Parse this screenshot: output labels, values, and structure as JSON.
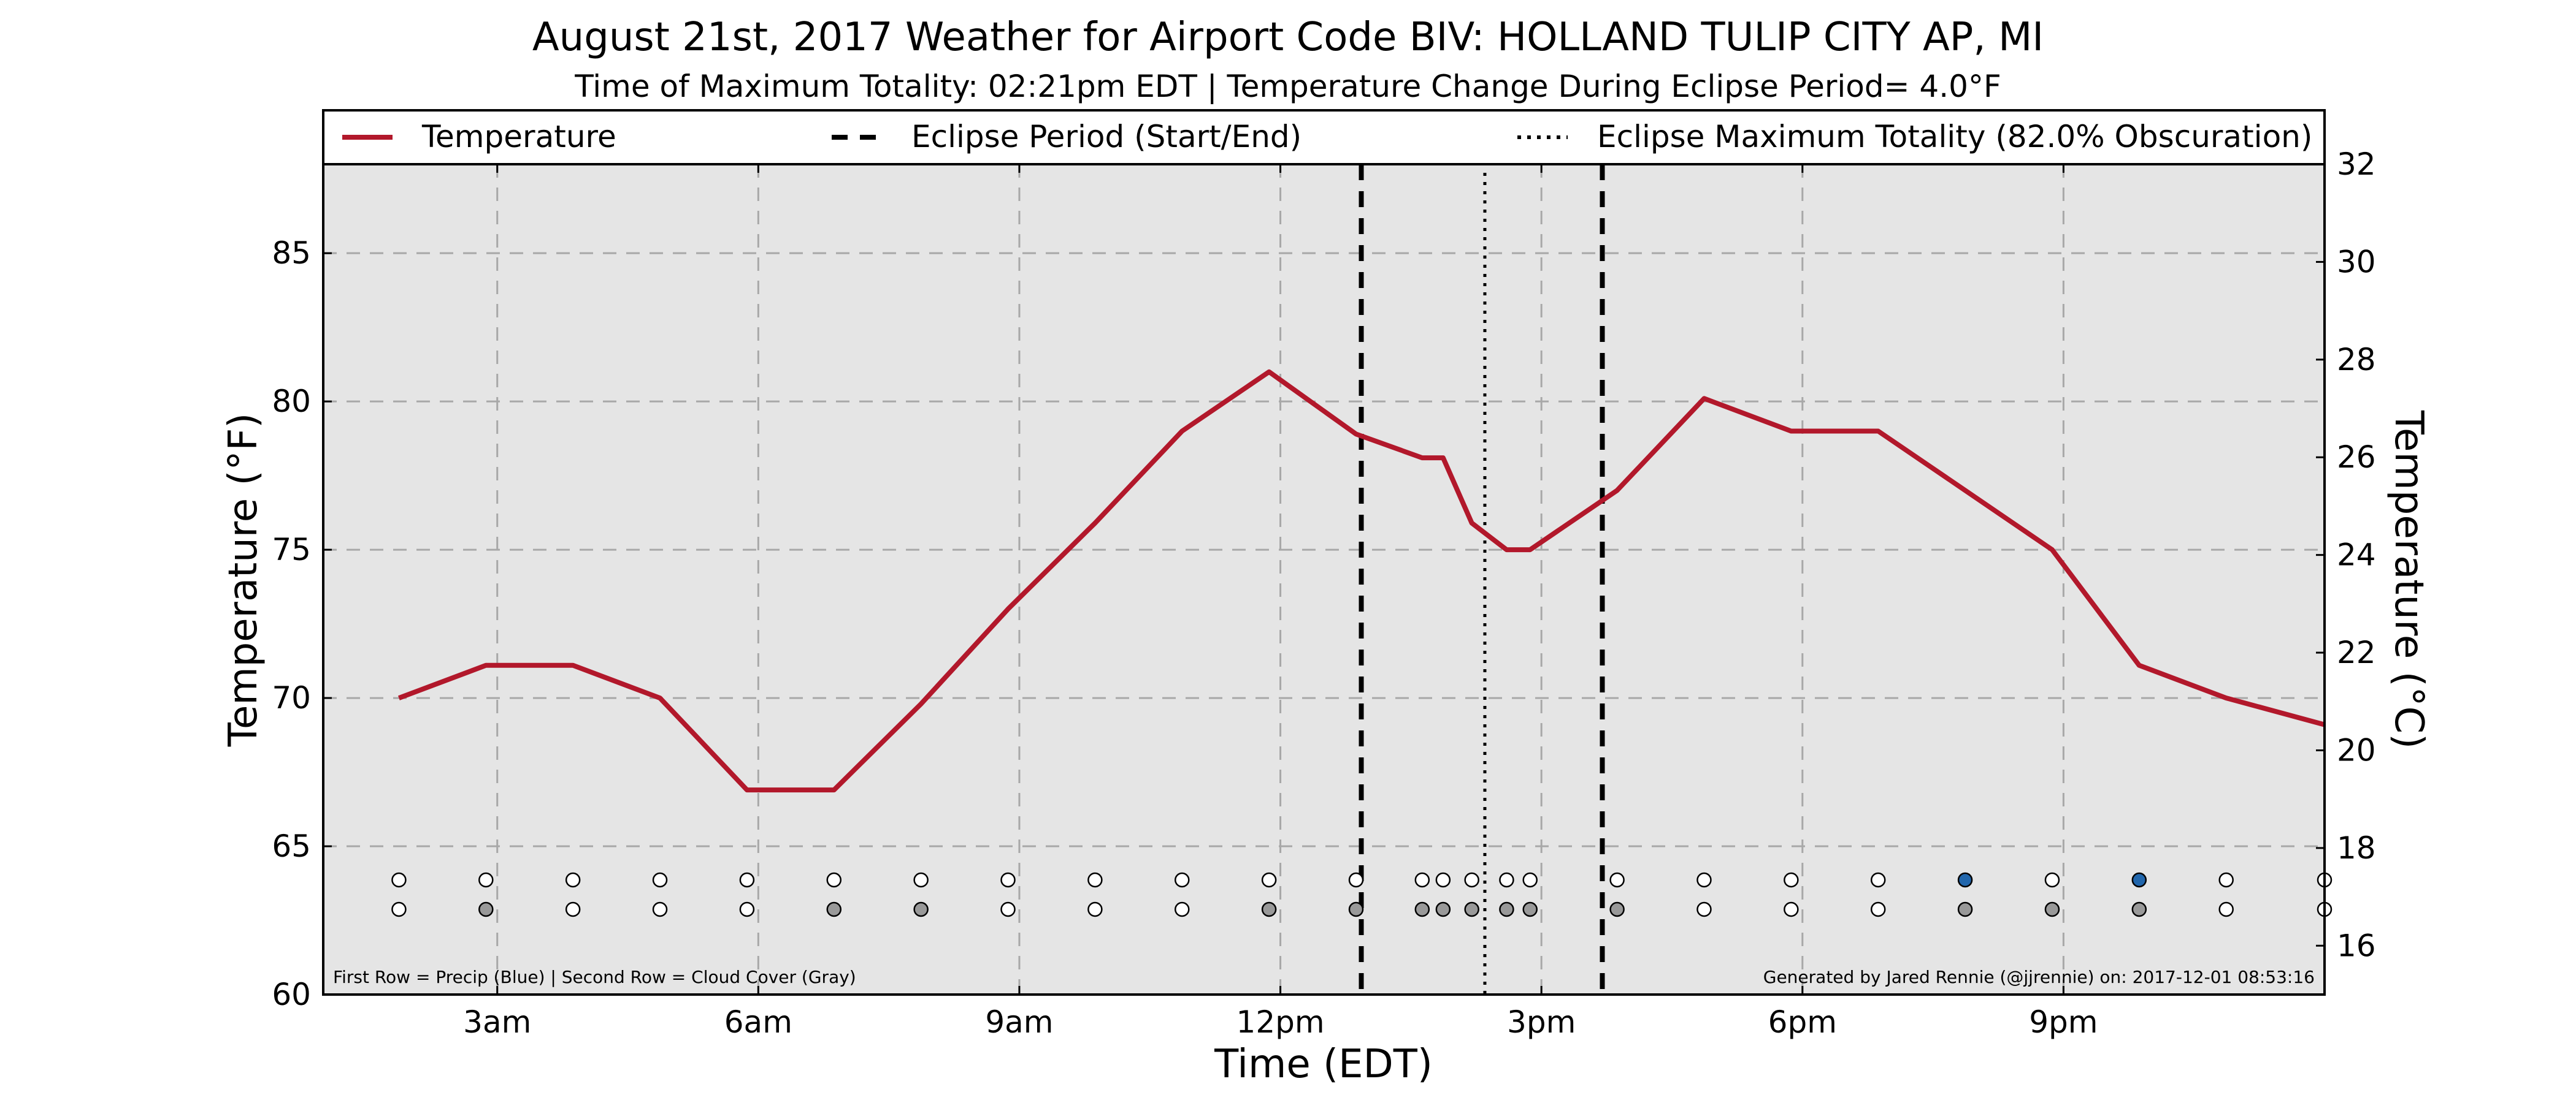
{
  "header": {
    "title": "August 21st, 2017 Weather for Airport Code BIV: HOLLAND TULIP CITY AP, MI",
    "subtitle": "Time of Maximum Totality: 02:21pm EDT | Temperature Change During Eclipse Period= 4.0°F"
  },
  "legend": {
    "temperature": "Temperature",
    "eclipse_period": "Eclipse Period (Start/End)",
    "eclipse_max": "Eclipse Maximum Totality (82.0% Obscuration)",
    "placement": "top"
  },
  "footer": {
    "left": "First Row = Precip (Blue) | Second Row = Cloud Cover (Gray)",
    "right": "Generated by Jared Rennie (@jjrennie) on: 2017-12-01 08:53:16"
  },
  "colors": {
    "plot_background": "#e5e5e5",
    "temperature_line": "#b2182b",
    "precip": "#2166ac",
    "cloud": "#999999",
    "clear": "#ffffff"
  },
  "chart_data": {
    "type": "line",
    "x_unit": "hours after midnight EDT",
    "xlim": [
      1.0,
      24.0
    ],
    "x_ticks": [
      {
        "x": 3,
        "label": "3am"
      },
      {
        "x": 6,
        "label": "6am"
      },
      {
        "x": 9,
        "label": "9am"
      },
      {
        "x": 12,
        "label": "12pm"
      },
      {
        "x": 15,
        "label": "3pm"
      },
      {
        "x": 18,
        "label": "6pm"
      },
      {
        "x": 21,
        "label": "9pm"
      }
    ],
    "xlabel": "Time (EDT)",
    "ylabel": "Temperature (°F)",
    "ylim": [
      60,
      88
    ],
    "y_ticks": [
      60,
      65,
      70,
      75,
      80,
      85
    ],
    "y2label": "Temperature (°C)",
    "y2lim": [
      15.0,
      32.0
    ],
    "y2_ticks": [
      16,
      18,
      20,
      22,
      24,
      26,
      28,
      30,
      32
    ],
    "grid": true,
    "series": [
      {
        "name": "Temperature",
        "x": [
          1.87,
          2.87,
          3.87,
          4.87,
          5.87,
          6.87,
          7.87,
          8.87,
          9.87,
          10.87,
          11.87,
          12.87,
          13.63,
          13.87,
          14.2,
          14.6,
          14.87,
          15.87,
          16.87,
          17.87,
          18.87,
          19.87,
          20.87,
          21.87,
          22.87,
          24.0
        ],
        "y": [
          70,
          71.1,
          71.1,
          70,
          66.9,
          66.9,
          69.8,
          73,
          75.9,
          79,
          81,
          78.9,
          78.1,
          78.1,
          75.9,
          75,
          75,
          77,
          80.1,
          79,
          79,
          77,
          75,
          71.1,
          70,
          69.1
        ]
      }
    ],
    "eclipse_start": 12.93,
    "eclipse_max": 14.35,
    "eclipse_end": 15.7,
    "observation_rows": {
      "x": [
        1.87,
        2.87,
        3.87,
        4.87,
        5.87,
        6.87,
        7.87,
        8.87,
        9.87,
        10.87,
        11.87,
        12.87,
        13.63,
        13.87,
        14.2,
        14.6,
        14.87,
        15.87,
        16.87,
        17.87,
        18.87,
        19.87,
        20.87,
        21.87,
        22.87,
        24.0
      ],
      "precip": [
        0,
        0,
        0,
        0,
        0,
        0,
        0,
        0,
        0,
        0,
        0,
        0,
        0,
        0,
        0,
        0,
        0,
        0,
        0,
        0,
        0,
        1,
        0,
        1,
        0,
        0
      ],
      "cloud": [
        0,
        1,
        0,
        0,
        0,
        1,
        1,
        0,
        0,
        0,
        1,
        1,
        1,
        1,
        1,
        1,
        1,
        1,
        0,
        0,
        0,
        1,
        1,
        1,
        0,
        0
      ]
    }
  }
}
